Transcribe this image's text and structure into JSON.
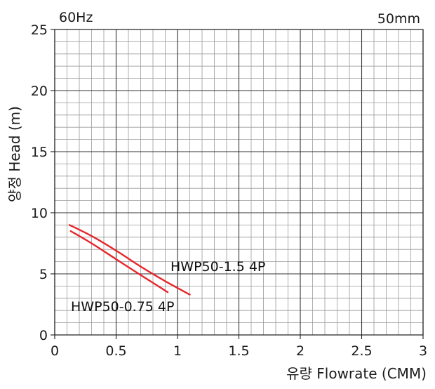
{
  "chart_data": {
    "type": "line",
    "frequency_label": "60Hz",
    "size_label": "50mm",
    "xlabel": "유량 Flowrate (CMM)",
    "ylabel": "양정 Head (m)",
    "xlim": [
      0,
      3
    ],
    "ylim": [
      0,
      25
    ],
    "x_major_ticks": [
      0,
      0.5,
      1,
      1.5,
      2,
      2.5,
      3
    ],
    "x_tick_labels": [
      "0",
      "0.5",
      "1",
      "1.5",
      "2",
      "2.5",
      "3"
    ],
    "y_major_ticks": [
      0,
      5,
      10,
      15,
      20,
      25
    ],
    "y_tick_labels": [
      "0",
      "5",
      "10",
      "15",
      "20",
      "25"
    ],
    "x_minor_step": 0.1,
    "y_minor_step": 1,
    "grid": true,
    "series": [
      {
        "name": "HWP50-1.5 4P",
        "color": "#e8262b",
        "x": [
          0.12,
          0.3,
          0.5,
          0.7,
          0.9,
          1.1
        ],
        "y": [
          9.0,
          8.1,
          6.9,
          5.6,
          4.4,
          3.3
        ]
      },
      {
        "name": "HWP50-0.75 4P",
        "color": "#e8262b",
        "x": [
          0.13,
          0.3,
          0.5,
          0.7,
          0.92
        ],
        "y": [
          8.5,
          7.5,
          6.2,
          4.9,
          3.5
        ]
      }
    ]
  }
}
